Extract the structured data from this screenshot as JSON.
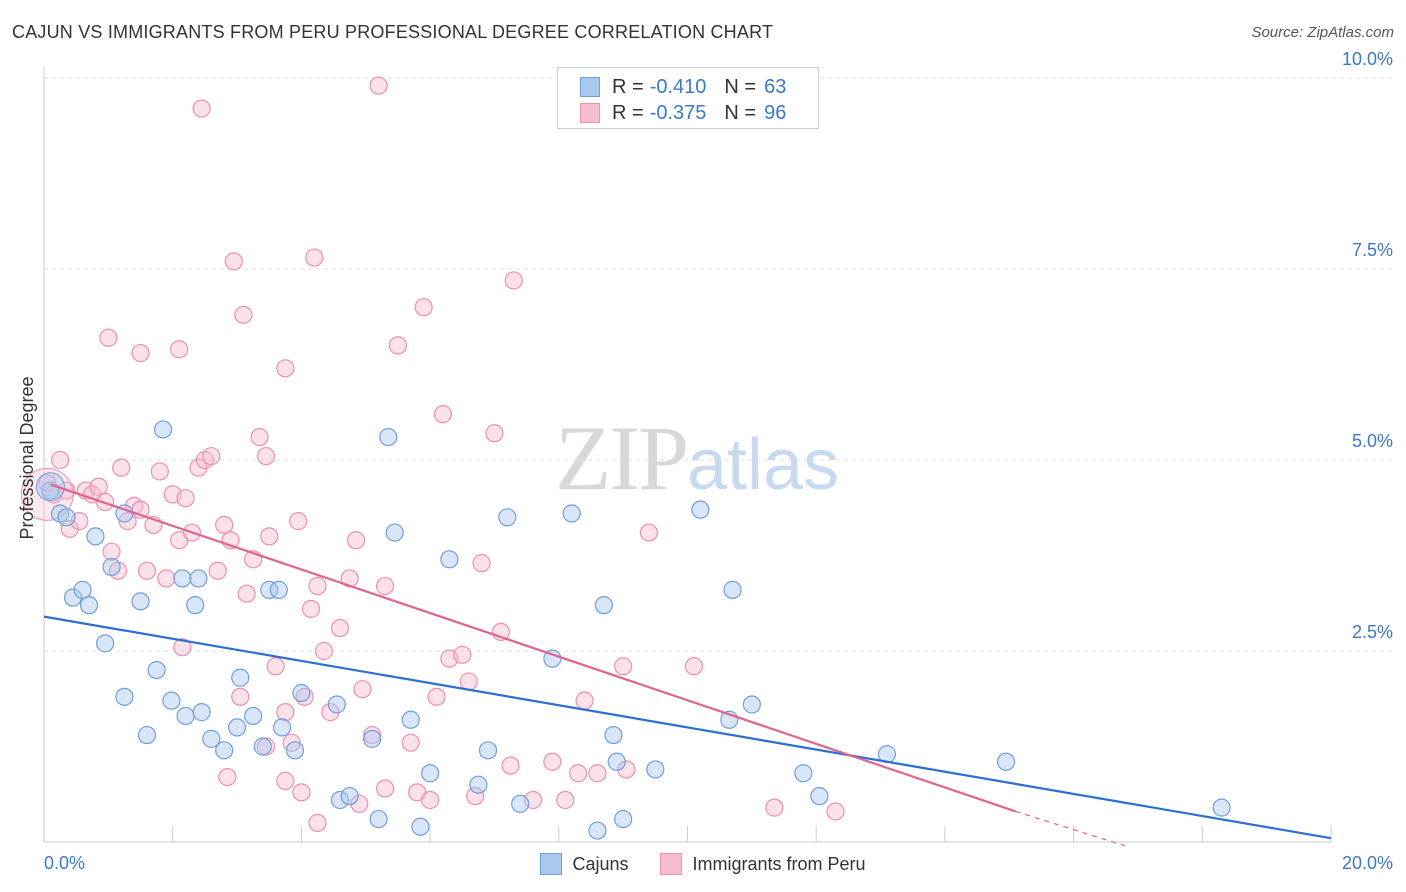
{
  "title": "CAJUN VS IMMIGRANTS FROM PERU PROFESSIONAL DEGREE CORRELATION CHART",
  "source": "Source: ZipAtlas.com",
  "watermark": {
    "zip": "ZIP",
    "atlas": "atlas"
  },
  "legend_top": {
    "rows": [
      {
        "r_label": "R =",
        "r_value": "-0.410",
        "n_label": "N =",
        "n_value": "63"
      },
      {
        "r_label": "R =",
        "r_value": "-0.375",
        "n_label": "N =",
        "n_value": "96"
      }
    ]
  },
  "legend_bottom": {
    "cajuns": "Cajuns",
    "peru": "Immigrants from Peru"
  },
  "colors": {
    "cajun_fill": "#a9c8ee",
    "cajun_stroke": "#6f9fdc",
    "cajun_line": "#2b6fd0",
    "peru_fill": "#f6bdd0",
    "peru_stroke": "#ee8fb0",
    "peru_line": "#e0628f",
    "grid": "#dddddd",
    "tick_text": "#3c78c8"
  },
  "chart_data": {
    "type": "scatter",
    "title": "CAJUN VS IMMIGRANTS FROM PERU PROFESSIONAL DEGREE CORRELATION CHART",
    "xlabel": "",
    "ylabel": "Professional Degree",
    "xlim": [
      0,
      20
    ],
    "ylim": [
      0,
      10.5
    ],
    "x_tick_labels": [
      "0.0%",
      "20.0%"
    ],
    "y_ticks": [
      2.5,
      5.0,
      7.5,
      10.0
    ],
    "y_tick_labels": [
      "2.5%",
      "5.0%",
      "7.5%",
      "10.0%"
    ],
    "grid": true,
    "series": [
      {
        "name": "Cajuns",
        "trend": {
          "x": [
            0,
            20
          ],
          "y": [
            2.95,
            0.05
          ]
        },
        "points": [
          [
            0.1,
            4.6
          ],
          [
            0.25,
            4.3
          ],
          [
            0.35,
            4.25
          ],
          [
            0.45,
            3.2
          ],
          [
            0.6,
            3.3
          ],
          [
            0.7,
            3.1
          ],
          [
            0.8,
            4.0
          ],
          [
            0.95,
            2.6
          ],
          [
            1.05,
            3.6
          ],
          [
            1.25,
            4.3
          ],
          [
            1.5,
            3.15
          ],
          [
            1.85,
            5.4
          ],
          [
            2.15,
            3.45
          ],
          [
            2.35,
            3.1
          ],
          [
            2.4,
            3.45
          ],
          [
            3.5,
            3.3
          ],
          [
            3.65,
            3.3
          ],
          [
            5.35,
            5.3
          ],
          [
            5.45,
            4.05
          ],
          [
            6.3,
            3.7
          ],
          [
            7.2,
            4.25
          ],
          [
            7.9,
            2.4
          ],
          [
            8.2,
            4.3
          ],
          [
            8.7,
            3.1
          ],
          [
            10.2,
            4.35
          ],
          [
            10.7,
            3.3
          ],
          [
            1.25,
            1.9
          ],
          [
            1.6,
            1.4
          ],
          [
            1.75,
            2.25
          ],
          [
            1.98,
            1.85
          ],
          [
            2.2,
            1.65
          ],
          [
            2.45,
            1.7
          ],
          [
            2.6,
            1.35
          ],
          [
            2.8,
            1.2
          ],
          [
            3.0,
            1.5
          ],
          [
            3.05,
            2.15
          ],
          [
            3.25,
            1.65
          ],
          [
            3.4,
            1.25
          ],
          [
            3.7,
            1.5
          ],
          [
            3.9,
            1.2
          ],
          [
            4.0,
            1.95
          ],
          [
            4.55,
            1.8
          ],
          [
            4.6,
            0.55
          ],
          [
            4.75,
            0.6
          ],
          [
            5.1,
            1.35
          ],
          [
            5.2,
            0.3
          ],
          [
            5.7,
            1.6
          ],
          [
            5.85,
            0.2
          ],
          [
            6.0,
            0.9
          ],
          [
            6.75,
            0.75
          ],
          [
            6.9,
            1.2
          ],
          [
            7.4,
            0.5
          ],
          [
            8.6,
            0.15
          ],
          [
            8.85,
            1.4
          ],
          [
            8.9,
            1.05
          ],
          [
            9.0,
            0.3
          ],
          [
            9.5,
            0.95
          ],
          [
            10.65,
            1.6
          ],
          [
            11.0,
            1.8
          ],
          [
            11.8,
            0.9
          ],
          [
            12.05,
            0.6
          ],
          [
            13.1,
            1.15
          ],
          [
            14.95,
            1.05
          ],
          [
            18.3,
            0.45
          ]
        ]
      },
      {
        "name": "Immigrants from Peru",
        "trend": {
          "x": [
            0.1,
            15.1
          ],
          "y": [
            4.68,
            0.4
          ]
        },
        "trend_dashed": {
          "x": [
            15.1,
            16.8
          ],
          "y": [
            0.4,
            -0.05
          ]
        },
        "points": [
          [
            0.05,
            4.7
          ],
          [
            0.15,
            4.55
          ],
          [
            0.25,
            5.0
          ],
          [
            0.35,
            4.6
          ],
          [
            0.4,
            4.1
          ],
          [
            0.55,
            4.2
          ],
          [
            0.65,
            4.6
          ],
          [
            0.75,
            4.55
          ],
          [
            0.85,
            4.65
          ],
          [
            0.95,
            4.45
          ],
          [
            1.05,
            3.8
          ],
          [
            1.15,
            3.55
          ],
          [
            1.2,
            4.9
          ],
          [
            1.3,
            4.2
          ],
          [
            1.4,
            4.4
          ],
          [
            1.5,
            4.35
          ],
          [
            1.6,
            3.55
          ],
          [
            1.7,
            4.15
          ],
          [
            1.8,
            4.85
          ],
          [
            1.9,
            3.45
          ],
          [
            2.0,
            4.55
          ],
          [
            2.1,
            3.95
          ],
          [
            2.2,
            4.5
          ],
          [
            2.3,
            4.05
          ],
          [
            2.4,
            4.9
          ],
          [
            2.5,
            5.0
          ],
          [
            2.6,
            5.05
          ],
          [
            2.7,
            3.55
          ],
          [
            2.8,
            4.15
          ],
          [
            2.9,
            3.95
          ],
          [
            3.05,
            1.9
          ],
          [
            3.15,
            3.25
          ],
          [
            3.25,
            3.7
          ],
          [
            3.35,
            5.3
          ],
          [
            3.45,
            5.05
          ],
          [
            3.5,
            4.0
          ],
          [
            3.6,
            2.3
          ],
          [
            3.75,
            1.7
          ],
          [
            3.85,
            1.3
          ],
          [
            3.95,
            4.2
          ],
          [
            4.05,
            1.9
          ],
          [
            4.15,
            3.05
          ],
          [
            4.25,
            3.35
          ],
          [
            4.35,
            2.5
          ],
          [
            4.45,
            1.7
          ],
          [
            4.6,
            2.8
          ],
          [
            4.75,
            3.45
          ],
          [
            4.85,
            3.95
          ],
          [
            4.95,
            2.0
          ],
          [
            5.1,
            1.4
          ],
          [
            5.3,
            3.35
          ],
          [
            5.5,
            6.5
          ],
          [
            5.7,
            1.3
          ],
          [
            5.9,
            7.0
          ],
          [
            6.1,
            1.9
          ],
          [
            6.2,
            5.6
          ],
          [
            6.3,
            2.4
          ],
          [
            6.5,
            2.45
          ],
          [
            6.6,
            2.1
          ],
          [
            6.8,
            3.65
          ],
          [
            7.0,
            5.35
          ],
          [
            7.1,
            2.75
          ],
          [
            7.3,
            7.35
          ],
          [
            7.6,
            0.55
          ],
          [
            7.9,
            1.05
          ],
          [
            8.1,
            0.55
          ],
          [
            8.3,
            0.9
          ],
          [
            8.4,
            1.85
          ],
          [
            8.6,
            0.9
          ],
          [
            9.0,
            2.3
          ],
          [
            9.4,
            4.05
          ],
          [
            1.0,
            6.6
          ],
          [
            1.5,
            6.4
          ],
          [
            2.1,
            6.45
          ],
          [
            2.95,
            7.6
          ],
          [
            3.1,
            6.9
          ],
          [
            3.75,
            6.2
          ],
          [
            4.2,
            7.65
          ],
          [
            5.2,
            9.9
          ],
          [
            2.45,
            9.6
          ],
          [
            2.15,
            2.55
          ],
          [
            2.85,
            0.85
          ],
          [
            3.45,
            1.25
          ],
          [
            3.75,
            0.8
          ],
          [
            4.0,
            0.65
          ],
          [
            4.25,
            0.25
          ],
          [
            4.9,
            0.5
          ],
          [
            5.3,
            0.7
          ],
          [
            5.8,
            0.65
          ],
          [
            6.0,
            0.55
          ],
          [
            6.7,
            0.6
          ],
          [
            7.25,
            1.0
          ],
          [
            9.05,
            0.95
          ],
          [
            10.1,
            2.3
          ],
          [
            11.35,
            0.45
          ],
          [
            12.3,
            0.4
          ]
        ]
      }
    ]
  }
}
